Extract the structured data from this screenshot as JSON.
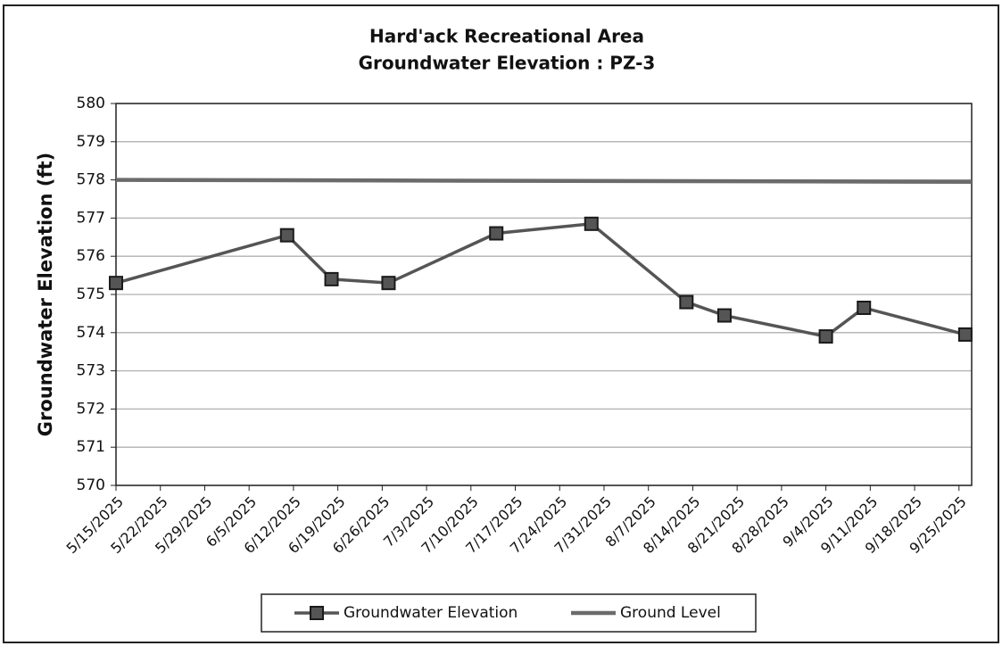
{
  "chart_data": {
    "type": "line",
    "title": [
      "Hard'ack Recreational Area",
      "Groundwater Elevation : PZ-3"
    ],
    "ylabel": "Groundwater Elevation (ft)",
    "xlim": [
      "5/15/2025",
      "9/27/2025"
    ],
    "xticks": [
      "5/15/2025",
      "5/22/2025",
      "5/29/2025",
      "6/5/2025",
      "6/12/2025",
      "6/19/2025",
      "6/26/2025",
      "7/3/2025",
      "7/10/2025",
      "7/17/2025",
      "7/24/2025",
      "7/31/2025",
      "8/7/2025",
      "8/14/2025",
      "8/21/2025",
      "8/28/2025",
      "9/4/2025",
      "9/11/2025",
      "9/18/2025",
      "9/25/2025"
    ],
    "ylim": [
      570,
      580
    ],
    "yticks": [
      570,
      571,
      572,
      573,
      574,
      575,
      576,
      577,
      578,
      579,
      580
    ],
    "grid": true,
    "legend": "bottom",
    "series": [
      {
        "name": "Groundwater Elevation",
        "color": "#555555",
        "marker": "square",
        "x": [
          "5/15/2025",
          "6/11/2025",
          "6/18/2025",
          "6/27/2025",
          "7/14/2025",
          "7/29/2025",
          "8/13/2025",
          "8/19/2025",
          "9/4/2025",
          "9/10/2025",
          "9/26/2025"
        ],
        "values": [
          575.3,
          576.55,
          575.4,
          575.3,
          576.6,
          576.85,
          574.8,
          574.45,
          573.9,
          574.65,
          573.95
        ]
      },
      {
        "name": "Ground Level",
        "color": "#6b6b6b",
        "x": [
          "5/15/2025",
          "9/27/2025"
        ],
        "values": [
          578,
          577.95
        ]
      }
    ]
  }
}
